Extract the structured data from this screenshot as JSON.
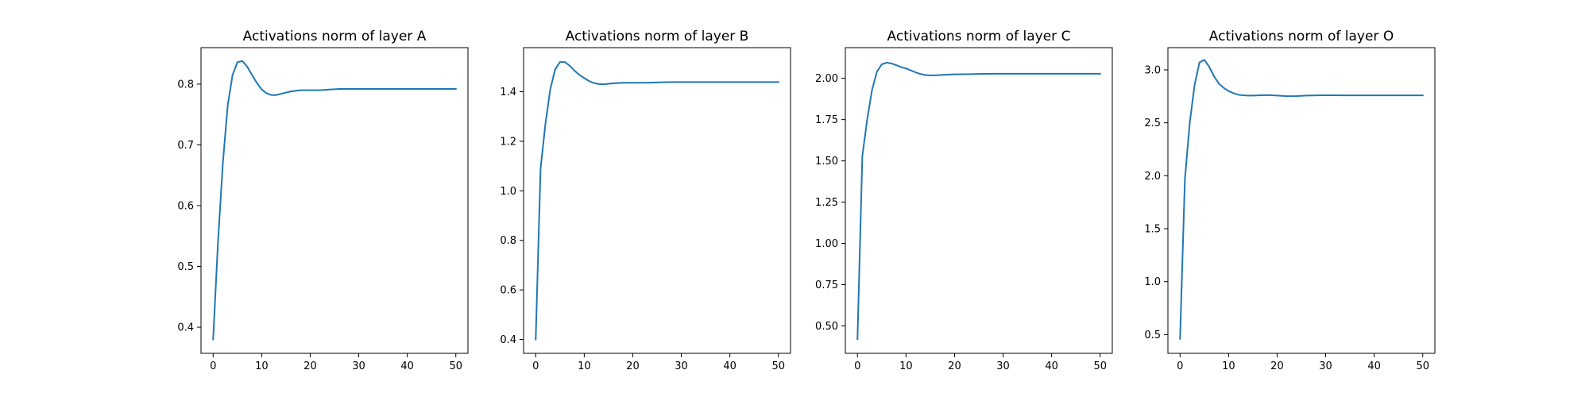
{
  "chart_data": [
    {
      "type": "line",
      "title": "Activations norm of layer A",
      "xlabel": "",
      "ylabel": "",
      "xlim": [
        -2.5,
        52.5
      ],
      "ylim": [
        0.357,
        0.86
      ],
      "xticks": [
        0,
        10,
        20,
        30,
        40,
        50
      ],
      "xtick_labels": [
        "0",
        "10",
        "20",
        "30",
        "40",
        "50"
      ],
      "yticks": [
        0.4,
        0.5,
        0.6,
        0.7,
        0.8
      ],
      "ytick_labels": [
        "0.4",
        "0.5",
        "0.6",
        "0.7",
        "0.8"
      ],
      "grid": false,
      "series": [
        {
          "color": "#1f77b4",
          "x": [
            0,
            1,
            2,
            3,
            4,
            5,
            6,
            7,
            8,
            9,
            10,
            11,
            12,
            13,
            14,
            15,
            16,
            17,
            18,
            19,
            20,
            22,
            24,
            26,
            28,
            30,
            32,
            34,
            36,
            38,
            40,
            42,
            44,
            46,
            48,
            50
          ],
          "y": [
            0.38,
            0.54,
            0.67,
            0.765,
            0.815,
            0.836,
            0.838,
            0.829,
            0.815,
            0.802,
            0.791,
            0.785,
            0.782,
            0.782,
            0.784,
            0.786,
            0.788,
            0.789,
            0.79,
            0.79,
            0.79,
            0.79,
            0.791,
            0.792,
            0.792,
            0.792,
            0.792,
            0.792,
            0.792,
            0.792,
            0.792,
            0.792,
            0.792,
            0.792,
            0.792,
            0.792
          ]
        }
      ]
    },
    {
      "type": "line",
      "title": "Activations norm of layer B",
      "xlabel": "",
      "ylabel": "",
      "xlim": [
        -2.5,
        52.5
      ],
      "ylim": [
        0.344,
        1.578
      ],
      "xticks": [
        0,
        10,
        20,
        30,
        40,
        50
      ],
      "xtick_labels": [
        "0",
        "10",
        "20",
        "30",
        "40",
        "50"
      ],
      "yticks": [
        0.4,
        0.6,
        0.8,
        1.0,
        1.2,
        1.4
      ],
      "ytick_labels": [
        "0.4",
        "0.6",
        "0.8",
        "1.0",
        "1.2",
        "1.4"
      ],
      "grid": false,
      "series": [
        {
          "color": "#1f77b4",
          "x": [
            0,
            1,
            2,
            3,
            4,
            5,
            6,
            7,
            8,
            9,
            10,
            11,
            12,
            13,
            14,
            15,
            16,
            17,
            18,
            19,
            20,
            22,
            24,
            26,
            28,
            30,
            32,
            34,
            36,
            38,
            40,
            42,
            44,
            46,
            48,
            50
          ],
          "y": [
            0.4,
            1.09,
            1.27,
            1.41,
            1.49,
            1.52,
            1.52,
            1.505,
            1.485,
            1.468,
            1.455,
            1.443,
            1.435,
            1.431,
            1.43,
            1.432,
            1.434,
            1.435,
            1.436,
            1.436,
            1.436,
            1.436,
            1.437,
            1.438,
            1.439,
            1.439,
            1.439,
            1.439,
            1.439,
            1.439,
            1.439,
            1.439,
            1.439,
            1.439,
            1.439,
            1.439
          ]
        }
      ]
    },
    {
      "type": "line",
      "title": "Activations norm of layer C",
      "xlabel": "",
      "ylabel": "",
      "xlim": [
        -2.5,
        52.5
      ],
      "ylim": [
        0.334,
        2.186
      ],
      "xticks": [
        0,
        10,
        20,
        30,
        40,
        50
      ],
      "xtick_labels": [
        "0",
        "10",
        "20",
        "30",
        "40",
        "50"
      ],
      "yticks": [
        0.5,
        0.75,
        1.0,
        1.25,
        1.5,
        1.75,
        2.0
      ],
      "ytick_labels": [
        "0.50",
        "0.75",
        "1.00",
        "1.25",
        "1.50",
        "1.75",
        "2.00"
      ],
      "grid": false,
      "series": [
        {
          "color": "#1f77b4",
          "x": [
            0,
            1,
            2,
            3,
            4,
            5,
            6,
            7,
            8,
            9,
            10,
            11,
            12,
            13,
            14,
            15,
            16,
            17,
            18,
            19,
            20,
            22,
            24,
            26,
            28,
            30,
            32,
            34,
            36,
            38,
            40,
            42,
            44,
            46,
            48,
            50
          ],
          "y": [
            0.42,
            1.53,
            1.75,
            1.93,
            2.04,
            2.085,
            2.095,
            2.09,
            2.08,
            2.068,
            2.06,
            2.048,
            2.036,
            2.026,
            2.02,
            2.018,
            2.018,
            2.02,
            2.022,
            2.023,
            2.024,
            2.025,
            2.026,
            2.027,
            2.028,
            2.028,
            2.028,
            2.028,
            2.028,
            2.028,
            2.028,
            2.028,
            2.028,
            2.028,
            2.028,
            2.028
          ]
        }
      ]
    },
    {
      "type": "line",
      "title": "Activations norm of layer O",
      "xlabel": "",
      "ylabel": "",
      "xlim": [
        -2.5,
        52.5
      ],
      "ylim": [
        0.323,
        3.21
      ],
      "xticks": [
        0,
        10,
        20,
        30,
        40,
        50
      ],
      "xtick_labels": [
        "0",
        "10",
        "20",
        "30",
        "40",
        "50"
      ],
      "yticks": [
        0.5,
        1.0,
        1.5,
        2.0,
        2.5,
        3.0
      ],
      "ytick_labels": [
        "0.5",
        "1.0",
        "1.5",
        "2.0",
        "2.5",
        "3.0"
      ],
      "grid": false,
      "series": [
        {
          "color": "#1f77b4",
          "x": [
            0,
            1,
            2,
            3,
            4,
            5,
            6,
            7,
            8,
            9,
            10,
            11,
            12,
            13,
            14,
            15,
            16,
            17,
            18,
            19,
            20,
            22,
            24,
            26,
            28,
            30,
            32,
            34,
            36,
            38,
            40,
            42,
            44,
            46,
            48,
            50
          ],
          "y": [
            0.46,
            1.97,
            2.5,
            2.86,
            3.07,
            3.095,
            3.03,
            2.94,
            2.87,
            2.83,
            2.8,
            2.78,
            2.765,
            2.76,
            2.757,
            2.757,
            2.759,
            2.761,
            2.762,
            2.76,
            2.757,
            2.752,
            2.753,
            2.757,
            2.759,
            2.76,
            2.76,
            2.759,
            2.759,
            2.759,
            2.759,
            2.759,
            2.759,
            2.759,
            2.759,
            2.759
          ]
        }
      ]
    }
  ]
}
